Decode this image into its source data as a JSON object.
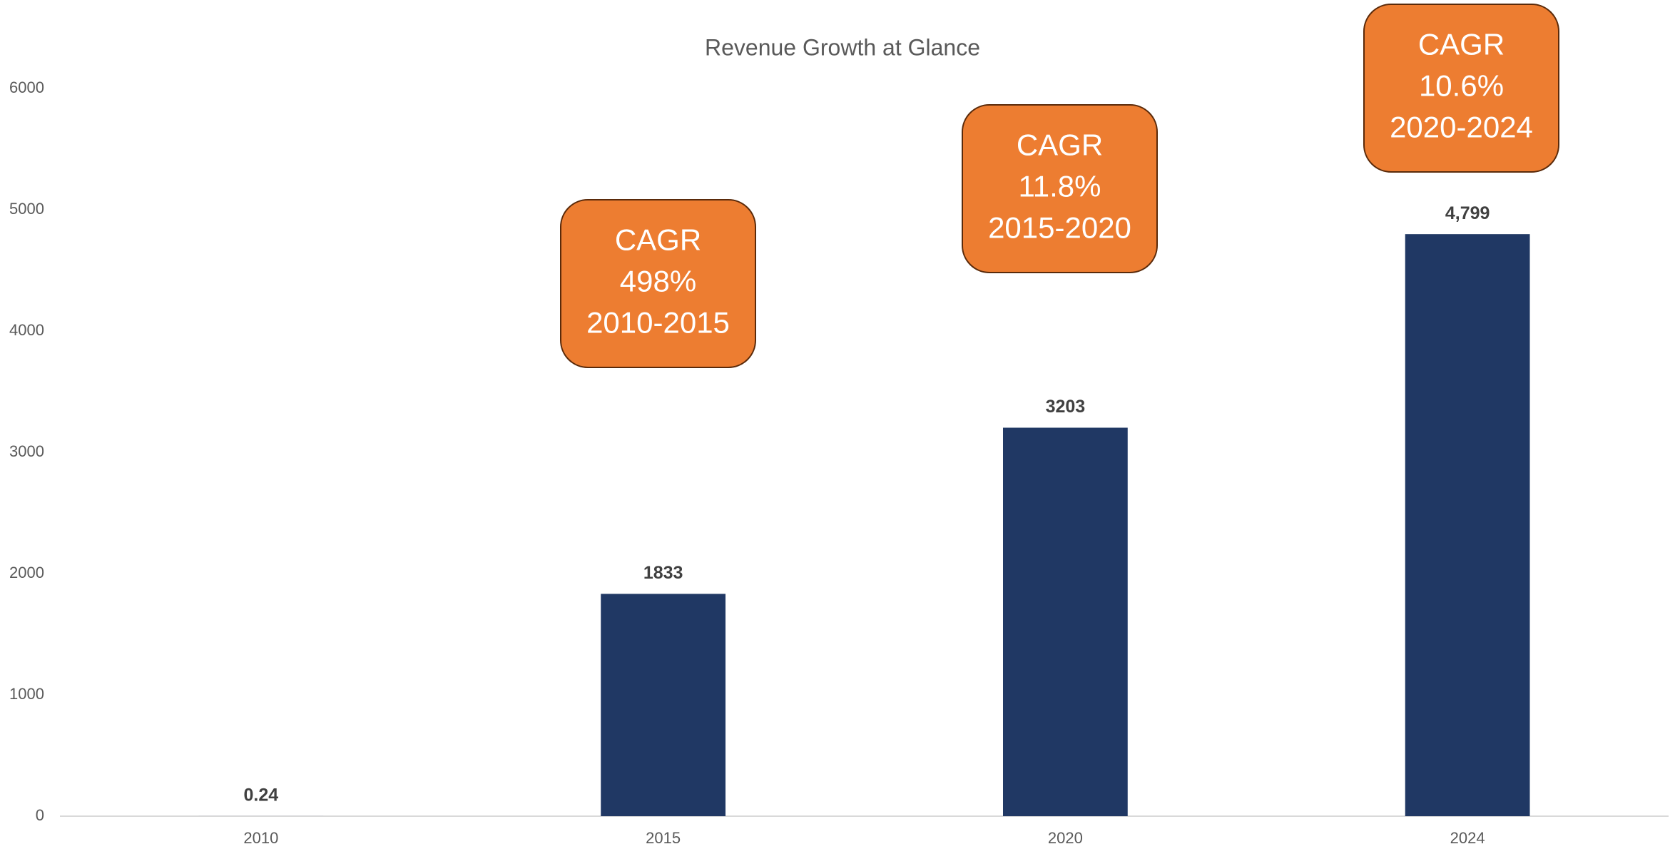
{
  "chart_data": {
    "type": "bar",
    "title": "Revenue Growth at Glance",
    "categories": [
      "2010",
      "2015",
      "2020",
      "2024"
    ],
    "values": [
      0.24,
      1833,
      3203,
      4799
    ],
    "value_labels": [
      "0.24",
      "1833",
      "3203",
      "4,799"
    ],
    "color": "#203864",
    "ylim": [
      0,
      6000
    ],
    "yticks": [
      0,
      1000,
      2000,
      3000,
      4000,
      5000,
      6000
    ],
    "grid": false,
    "annotations": [
      [
        "CAGR",
        "498%",
        "2010-2015"
      ],
      [
        "CAGR",
        "11.8%",
        "2015-2020"
      ],
      [
        "CAGR",
        "10.6%",
        "2020-2024"
      ]
    ],
    "annotation_color": "#ed7d31"
  }
}
